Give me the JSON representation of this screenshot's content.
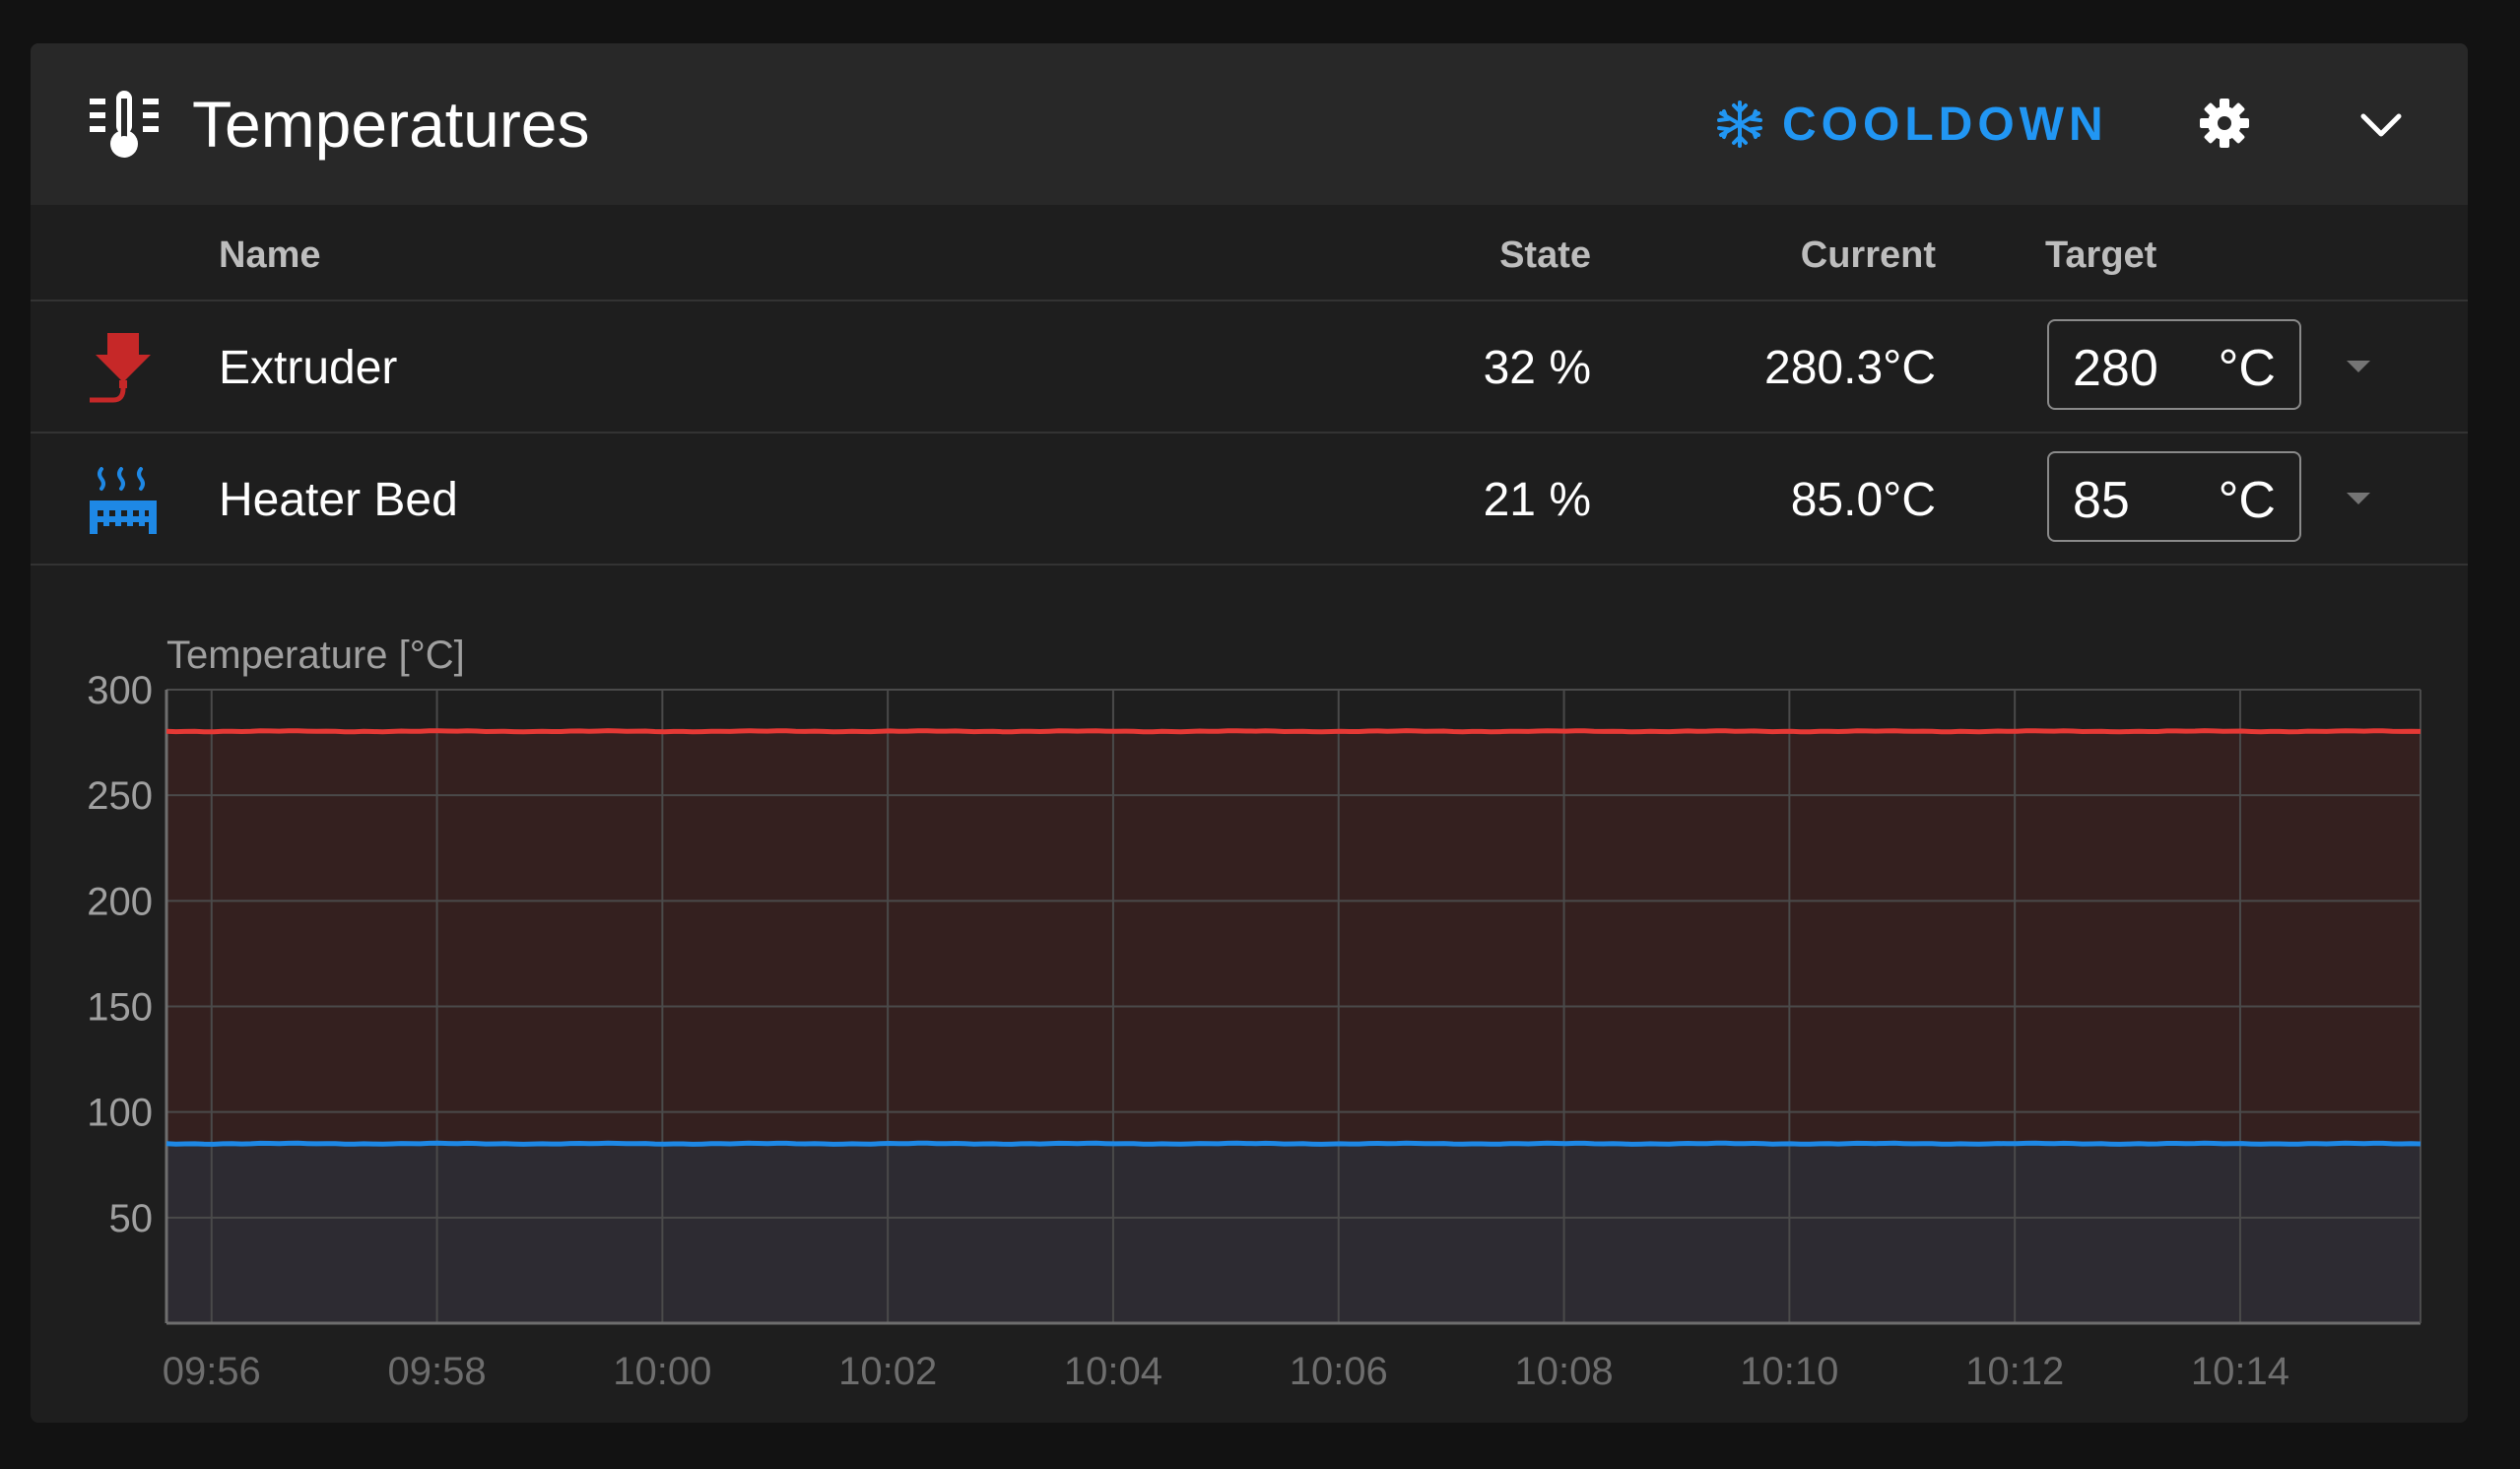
{
  "header": {
    "title": "Temperatures",
    "title_icon": "thermometer-lines-icon",
    "cooldown_label": "COOLDOWN",
    "cooldown_icon": "snowflake-icon",
    "settings_icon": "gear-icon",
    "collapse_icon": "chevron-down-icon"
  },
  "table": {
    "columns": [
      "Name",
      "State",
      "Current",
      "Target"
    ],
    "rows": [
      {
        "icon": "extruder-icon",
        "name": "Extruder",
        "state": "32 %",
        "current": "280.3°C",
        "target": "280",
        "unit": "°C",
        "color": "#c62828"
      },
      {
        "icon": "heater-bed-icon",
        "name": "Heater Bed",
        "state": "21 %",
        "current": "85.0°C",
        "target": "85",
        "unit": "°C",
        "color": "#2196f3"
      }
    ]
  },
  "chart_data": {
    "type": "area",
    "ylabel": "Temperature [°C]",
    "y_ticks": [
      50,
      100,
      150,
      200,
      250,
      300
    ],
    "ylim": [
      0,
      300
    ],
    "x_ticks": [
      "09:56",
      "09:58",
      "10:00",
      "10:02",
      "10:04",
      "10:06",
      "10:08",
      "10:10",
      "10:12",
      "10:14"
    ],
    "xlim": [
      "09:55:36",
      "10:15:36"
    ],
    "grid": true,
    "series": [
      {
        "name": "Extruder",
        "color": "#e53935",
        "fill": "#34201f",
        "value": 280.3
      },
      {
        "name": "Heater Bed",
        "color": "#1e88e5",
        "fill": "#2d2b32",
        "value": 85.0
      }
    ]
  }
}
